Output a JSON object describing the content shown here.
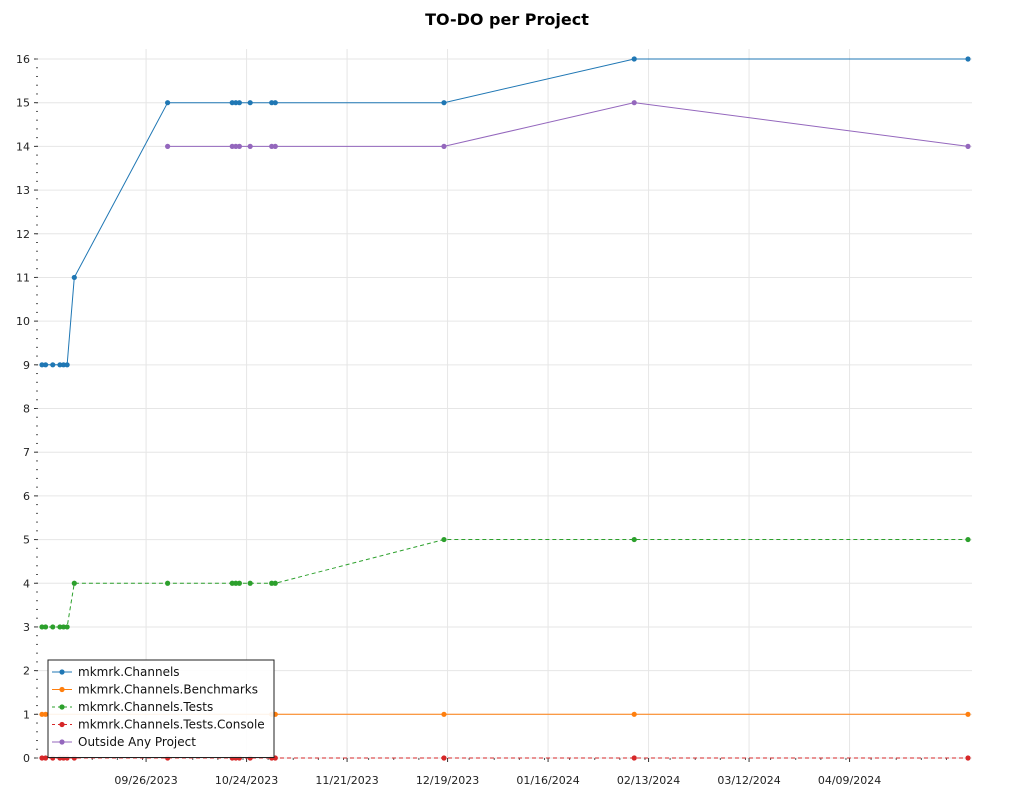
{
  "chart_data": {
    "type": "line",
    "title": "TO-DO per Project",
    "xlabel": "",
    "ylabel": "",
    "ylim": [
      0,
      16
    ],
    "xlim": [
      "2023-08-28",
      "2024-05-12"
    ],
    "y_ticks": [
      0,
      1,
      2,
      3,
      4,
      5,
      6,
      7,
      8,
      9,
      10,
      11,
      12,
      13,
      14,
      15,
      16
    ],
    "x_ticks": [
      "09/26/2023",
      "10/24/2023",
      "11/21/2023",
      "12/19/2023",
      "01/16/2024",
      "02/13/2024",
      "03/12/2024",
      "04/09/2024"
    ],
    "grid": true,
    "legend_position": "bottom-left",
    "series": [
      {
        "name": "mkmrk.Channels",
        "color": "#1f77b4",
        "dash": "solid",
        "points": [
          [
            "2023-08-28",
            9
          ],
          [
            "2023-08-29",
            9
          ],
          [
            "2023-08-31",
            9
          ],
          [
            "2023-09-02",
            9
          ],
          [
            "2023-09-03",
            9
          ],
          [
            "2023-09-04",
            9
          ],
          [
            "2023-09-06",
            11
          ],
          [
            "2023-10-02",
            15
          ],
          [
            "2023-10-20",
            15
          ],
          [
            "2023-10-21",
            15
          ],
          [
            "2023-10-22",
            15
          ],
          [
            "2023-10-25",
            15
          ],
          [
            "2023-10-31",
            15
          ],
          [
            "2023-11-01",
            15
          ],
          [
            "2023-12-18",
            15
          ],
          [
            "2024-02-09",
            16
          ],
          [
            "2024-05-12",
            16
          ]
        ]
      },
      {
        "name": "mkmrk.Channels.Benchmarks",
        "color": "#ff7f0e",
        "dash": "solid",
        "points": [
          [
            "2023-08-28",
            1
          ],
          [
            "2023-08-29",
            1
          ],
          [
            "2023-10-31",
            1
          ],
          [
            "2023-11-01",
            1
          ],
          [
            "2023-12-18",
            1
          ],
          [
            "2024-02-09",
            1
          ],
          [
            "2024-05-12",
            1
          ]
        ]
      },
      {
        "name": "mkmrk.Channels.Tests",
        "color": "#2ca02c",
        "dash": "dashed",
        "points": [
          [
            "2023-08-28",
            3
          ],
          [
            "2023-08-29",
            3
          ],
          [
            "2023-08-31",
            3
          ],
          [
            "2023-09-02",
            3
          ],
          [
            "2023-09-03",
            3
          ],
          [
            "2023-09-04",
            3
          ],
          [
            "2023-09-06",
            4
          ],
          [
            "2023-10-02",
            4
          ],
          [
            "2023-10-20",
            4
          ],
          [
            "2023-10-21",
            4
          ],
          [
            "2023-10-22",
            4
          ],
          [
            "2023-10-25",
            4
          ],
          [
            "2023-10-31",
            4
          ],
          [
            "2023-11-01",
            4
          ],
          [
            "2023-12-18",
            5
          ],
          [
            "2024-02-09",
            5
          ],
          [
            "2024-05-12",
            5
          ]
        ]
      },
      {
        "name": "mkmrk.Channels.Tests.Console",
        "color": "#d62728",
        "dash": "dashed",
        "points": [
          [
            "2023-08-28",
            0
          ],
          [
            "2023-08-29",
            0
          ],
          [
            "2023-08-31",
            0
          ],
          [
            "2023-09-02",
            0
          ],
          [
            "2023-09-03",
            0
          ],
          [
            "2023-09-04",
            0
          ],
          [
            "2023-09-06",
            0
          ],
          [
            "2023-10-02",
            0
          ],
          [
            "2023-10-20",
            0
          ],
          [
            "2023-10-21",
            0
          ],
          [
            "2023-10-22",
            0
          ],
          [
            "2023-10-25",
            0
          ],
          [
            "2023-10-31",
            0
          ],
          [
            "2023-11-01",
            0
          ],
          [
            "2023-12-18",
            0
          ],
          [
            "2024-02-09",
            0
          ],
          [
            "2024-05-12",
            0
          ]
        ]
      },
      {
        "name": "Outside Any Project",
        "color": "#9467bd",
        "dash": "solid",
        "points": [
          [
            "2023-10-02",
            14
          ],
          [
            "2023-10-20",
            14
          ],
          [
            "2023-10-21",
            14
          ],
          [
            "2023-10-22",
            14
          ],
          [
            "2023-10-25",
            14
          ],
          [
            "2023-10-31",
            14
          ],
          [
            "2023-11-01",
            14
          ],
          [
            "2023-12-18",
            14
          ],
          [
            "2024-02-09",
            15
          ],
          [
            "2024-05-12",
            14
          ]
        ]
      }
    ]
  }
}
